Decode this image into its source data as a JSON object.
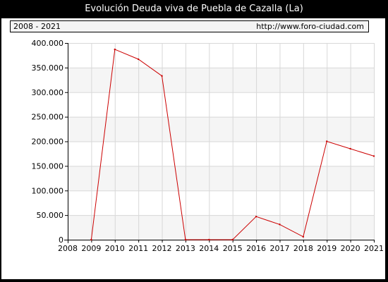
{
  "title": "Evolución Deuda viva de Puebla de Cazalla (La)",
  "header": {
    "period": "2008 - 2021",
    "source": "http://www.foro-ciudad.com"
  },
  "colors": {
    "line": "#cc0000",
    "band": "#f5f5f5",
    "grid": "#d8d8d8",
    "axis": "#000000"
  },
  "chart_data": {
    "type": "line",
    "title": "Evolución Deuda viva de Puebla de Cazalla (La)",
    "xlabel": "",
    "ylabel": "",
    "x_ticks": [
      2008,
      2009,
      2010,
      2011,
      2012,
      2013,
      2014,
      2015,
      2016,
      2017,
      2018,
      2019,
      2020,
      2021
    ],
    "y_ticks": [
      0,
      50000,
      100000,
      150000,
      200000,
      250000,
      300000,
      350000,
      400000
    ],
    "y_tick_labels": [
      "0",
      "50.000",
      "100.000",
      "150.000",
      "200.000",
      "250.000",
      "300.000",
      "350.000",
      "400.000"
    ],
    "xlim": [
      2008,
      2021
    ],
    "ylim": [
      0,
      400000
    ],
    "grid": true,
    "series": [
      {
        "x": [
          2009,
          2010,
          2011,
          2012,
          2013,
          2014,
          2015,
          2016,
          2017,
          2018,
          2019,
          2020,
          2021
        ],
        "values": [
          0,
          387000,
          367000,
          333000,
          0,
          0,
          0,
          47000,
          31000,
          6000,
          200000,
          185000,
          170000
        ]
      }
    ]
  }
}
